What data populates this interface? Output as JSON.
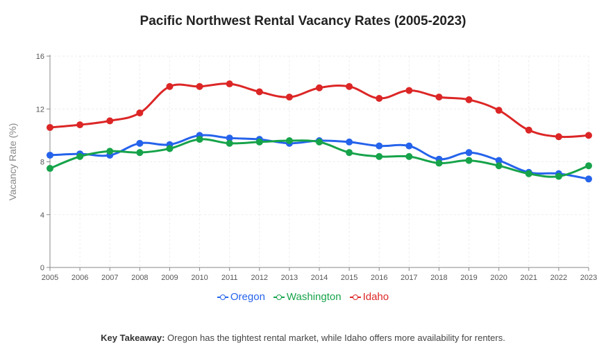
{
  "chart_data": {
    "type": "line",
    "title": "Pacific Northwest Rental Vacancy Rates (2005-2023)",
    "xlabel": "",
    "ylabel": "Vacancy Rate (%)",
    "ylim": [
      0,
      16
    ],
    "yticks": [
      0,
      4,
      8,
      12,
      16
    ],
    "x": [
      "2005",
      "2006",
      "2007",
      "2008",
      "2009",
      "2010",
      "2011",
      "2012",
      "2013",
      "2014",
      "2015",
      "2016",
      "2017",
      "2018",
      "2019",
      "2020",
      "2021",
      "2022",
      "2023"
    ],
    "grid": true,
    "legend": "bottom",
    "series": [
      {
        "name": "Oregon",
        "color": "#2563eb",
        "values": [
          8.5,
          8.6,
          8.5,
          9.4,
          9.3,
          10.0,
          9.8,
          9.7,
          9.4,
          9.6,
          9.5,
          9.2,
          9.2,
          8.2,
          8.7,
          8.1,
          7.2,
          7.1,
          6.7
        ]
      },
      {
        "name": "Washington",
        "color": "#16a34a",
        "values": [
          7.5,
          8.4,
          8.8,
          8.7,
          9.0,
          9.7,
          9.4,
          9.5,
          9.6,
          9.5,
          8.7,
          8.4,
          8.4,
          7.9,
          8.1,
          7.7,
          7.1,
          6.9,
          7.7
        ]
      },
      {
        "name": "Idaho",
        "color": "#dc2626",
        "values": [
          10.6,
          10.8,
          11.1,
          11.7,
          13.7,
          13.7,
          13.9,
          13.3,
          12.9,
          13.6,
          13.7,
          12.8,
          13.4,
          12.9,
          12.7,
          11.9,
          10.4,
          9.9,
          10.0
        ]
      }
    ]
  },
  "footer": {
    "takeaway_label": "Key Takeaway:",
    "takeaway_text": " Oregon has the tightest rental market, while Idaho offers more availability for renters."
  }
}
